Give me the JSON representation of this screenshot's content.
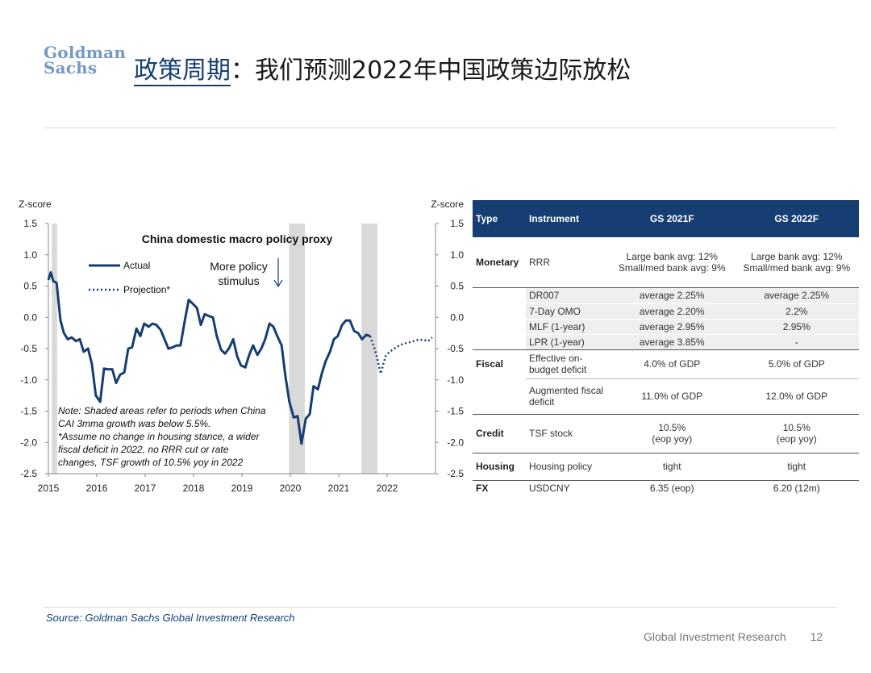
{
  "logo": {
    "line1": "Goldman",
    "line2": "Sachs"
  },
  "title": {
    "highlight": "政策周期",
    "separator": "：",
    "rest": "我们预测2022年中国政策边际放松"
  },
  "chart_data": {
    "type": "line",
    "title": "China domestic macro policy proxy",
    "ylabel_left": "Z-score",
    "ylabel_right": "Z-score",
    "xlim": [
      2015,
      2023
    ],
    "ylim": [
      -2.5,
      1.5
    ],
    "y_ticks": [
      1.5,
      1.0,
      0.5,
      0.0,
      -0.5,
      -1.0,
      -1.5,
      -2.0,
      -2.5
    ],
    "y_tick_labels": [
      "1.5",
      "1.0",
      "0.5",
      "0.0",
      "-0.5",
      "-1.0",
      "-1.5",
      "-2.0",
      "-2.5"
    ],
    "x_ticks": [
      2015,
      2016,
      2017,
      2018,
      2019,
      2020,
      2021,
      2022
    ],
    "x_tick_labels": [
      "2015",
      "2016",
      "2017",
      "2018",
      "2019",
      "2020",
      "2021",
      "2022"
    ],
    "legend": {
      "actual": "Actual",
      "projection": "Projection*"
    },
    "annotation": "More policy stimulus",
    "annotation_lines": [
      "More policy",
      "stimulus"
    ],
    "note_lines": [
      "Note: Shaded areas refer to periods when China",
      "CAI 3mma growth was below 5.5%.",
      "*Assume no change in housing stance, a wider",
      "fiscal deficit in 2022, no RRR cut or rate",
      "changes, TSF growth of 10.5% yoy in 2022"
    ],
    "shaded_periods": [
      [
        2015.07,
        2015.18
      ],
      [
        2019.97,
        2020.3
      ],
      [
        2021.47,
        2021.8
      ]
    ],
    "series": [
      {
        "name": "Actual",
        "style": "solid",
        "x": [
          2015.0,
          2015.05,
          2015.1,
          2015.17,
          2015.25,
          2015.32,
          2015.4,
          2015.48,
          2015.57,
          2015.65,
          2015.73,
          2015.82,
          2015.9,
          2015.98,
          2016.07,
          2016.15,
          2016.23,
          2016.32,
          2016.4,
          2016.48,
          2016.57,
          2016.65,
          2016.73,
          2016.82,
          2016.9,
          2016.98,
          2017.07,
          2017.15,
          2017.23,
          2017.32,
          2017.4,
          2017.48,
          2017.57,
          2017.65,
          2017.73,
          2017.82,
          2017.9,
          2017.98,
          2018.07,
          2018.15,
          2018.23,
          2018.32,
          2018.4,
          2018.48,
          2018.57,
          2018.65,
          2018.73,
          2018.82,
          2018.9,
          2018.98,
          2019.07,
          2019.15,
          2019.23,
          2019.32,
          2019.4,
          2019.48,
          2019.57,
          2019.65,
          2019.73,
          2019.82,
          2019.9,
          2019.98,
          2020.07,
          2020.15,
          2020.23,
          2020.32,
          2020.4,
          2020.48,
          2020.57,
          2020.65,
          2020.73,
          2020.82,
          2020.9,
          2020.98,
          2021.07,
          2021.15,
          2021.23,
          2021.32,
          2021.4,
          2021.48,
          2021.57,
          2021.65
        ],
        "y": [
          0.6,
          0.72,
          0.58,
          0.55,
          -0.05,
          -0.25,
          -0.35,
          -0.32,
          -0.38,
          -0.35,
          -0.55,
          -0.5,
          -0.75,
          -1.25,
          -1.35,
          -0.82,
          -0.83,
          -0.83,
          -1.05,
          -0.92,
          -0.88,
          -0.5,
          -0.48,
          -0.18,
          -0.3,
          -0.1,
          -0.15,
          -0.1,
          -0.12,
          -0.2,
          -0.35,
          -0.5,
          -0.48,
          -0.45,
          -0.45,
          -0.05,
          0.28,
          0.22,
          0.15,
          -0.12,
          0.05,
          0.02,
          0.0,
          -0.3,
          -0.52,
          -0.58,
          -0.5,
          -0.35,
          -0.62,
          -0.77,
          -0.8,
          -0.6,
          -0.45,
          -0.6,
          -0.5,
          -0.35,
          -0.1,
          -0.15,
          -0.3,
          -0.45,
          -0.95,
          -1.35,
          -1.6,
          -1.58,
          -2.02,
          -1.62,
          -1.55,
          -1.1,
          -1.15,
          -0.9,
          -0.7,
          -0.55,
          -0.35,
          -0.3,
          -0.12,
          -0.05,
          -0.05,
          -0.22,
          -0.25,
          -0.35,
          -0.28,
          -0.3
        ]
      },
      {
        "name": "Projection*",
        "style": "dotted",
        "x": [
          2021.65,
          2021.72,
          2021.78,
          2021.83,
          2021.87,
          2021.92,
          2021.97,
          2022.05,
          2022.15,
          2022.25,
          2022.35,
          2022.45,
          2022.55,
          2022.65,
          2022.75,
          2022.85,
          2022.93
        ],
        "y": [
          -0.3,
          -0.45,
          -0.6,
          -0.78,
          -0.9,
          -0.75,
          -0.62,
          -0.55,
          -0.5,
          -0.45,
          -0.42,
          -0.4,
          -0.38,
          -0.36,
          -0.36,
          -0.38,
          -0.32
        ]
      }
    ]
  },
  "table": {
    "headers": [
      "Type",
      "Instrument",
      "GS 2021F",
      "GS 2022F"
    ],
    "rows": [
      {
        "type": "Monetary",
        "instrument": "RRR",
        "f2021": [
          "Large bank avg: 12%",
          "Small/med bank avg: 9%"
        ],
        "f2022": [
          "Large bank avg: 12%",
          "Small/med bank avg: 9%"
        ]
      },
      {
        "type": "",
        "instrument": "DR007",
        "f2021": [
          "average 2.25%"
        ],
        "f2022": [
          "average 2.25%"
        ]
      },
      {
        "type": "",
        "instrument": "7-Day OMO",
        "f2021": [
          "average 2.20%"
        ],
        "f2022": [
          "2.2%"
        ]
      },
      {
        "type": "",
        "instrument": "MLF (1-year)",
        "f2021": [
          "average 2.95%"
        ],
        "f2022": [
          "2.95%"
        ]
      },
      {
        "type": "",
        "instrument": "LPR (1-year)",
        "f2021": [
          "average 3.85%"
        ],
        "f2022": [
          "-"
        ]
      },
      {
        "type": "Fiscal",
        "instrument": "Effective on-budget deficit",
        "f2021": [
          "4.0% of GDP"
        ],
        "f2022": [
          "5.0% of GDP"
        ]
      },
      {
        "type": "",
        "instrument": "Augmented fiscal deficit",
        "f2021": [
          "11.0% of GDP"
        ],
        "f2022": [
          "12.0% of GDP"
        ]
      },
      {
        "type": "Credit",
        "instrument": "TSF stock",
        "f2021": [
          "10.5%",
          "(eop yoy)"
        ],
        "f2022": [
          "10.5%",
          "(eop yoy)"
        ]
      },
      {
        "type": "Housing",
        "instrument": "Housing policy",
        "f2021": [
          "tight"
        ],
        "f2022": [
          "tight"
        ]
      },
      {
        "type": "FX",
        "instrument": "USDCNY",
        "f2021": [
          "6.35 (eop)"
        ],
        "f2022": [
          "6.20 (12m)"
        ]
      }
    ]
  },
  "source": "Source: Goldman Sachs Global Investment Research",
  "footer": {
    "text": "Global Investment Research",
    "page": "12"
  },
  "colors": {
    "brand": "#163e73",
    "logo": "#7399c6",
    "shade": "#d9d9d9"
  }
}
